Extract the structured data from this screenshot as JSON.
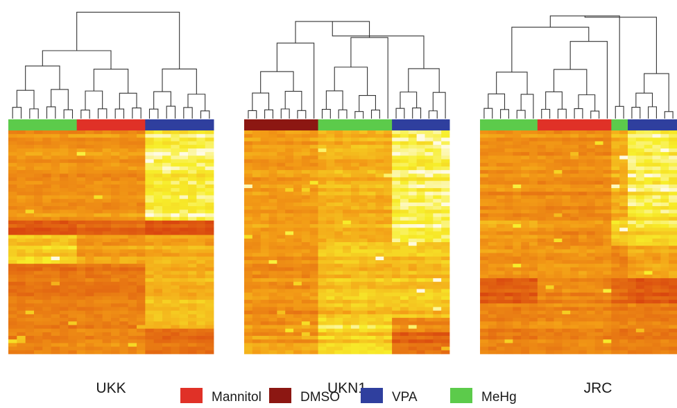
{
  "colors": {
    "Mannitol": "#e03127",
    "DMSO": "#8c1712",
    "VPA": "#2f3f9e",
    "MeHg": "#5ccb4b",
    "heat_low": "#d9470f",
    "heat_mid": "#f39c16",
    "heat_high": "#f7ee2a",
    "heat_max": "#fffbe4"
  },
  "legend": {
    "items": [
      {
        "label": "Mannitol",
        "color_key": "Mannitol"
      },
      {
        "label": "DMSO",
        "color_key": "DMSO"
      },
      {
        "label": "VPA",
        "color_key": "VPA"
      },
      {
        "label": "MeHg",
        "color_key": "MeHg"
      }
    ]
  },
  "chart_data": [
    {
      "type": "heatmap",
      "title": "UKK",
      "groups": [
        {
          "name": "MeHg",
          "n": 8
        },
        {
          "name": "Mannitol",
          "n": 8
        },
        {
          "name": "VPA",
          "n": 8
        }
      ],
      "clusters": [
        {
          "labels": [
            "MeHg",
            "Mannitol"
          ],
          "level": 0.96
        },
        {
          "labels": [
            "VPA"
          ],
          "level": 0.74
        }
      ]
    },
    {
      "type": "heatmap",
      "title": "UKN1",
      "groups": [
        {
          "name": "DMSO",
          "n": 9
        },
        {
          "name": "MeHg",
          "n": 9
        },
        {
          "name": "VPA",
          "n": 7
        }
      ],
      "clusters": [
        {
          "labels": [
            "DMSO",
            "MeHg"
          ],
          "level": 0.58
        },
        {
          "labels": [
            "VPA"
          ],
          "level": 0.33
        }
      ]
    },
    {
      "type": "heatmap",
      "title": "JRC",
      "groups": [
        {
          "name": "MeHg",
          "n": 7
        },
        {
          "name": "Mannitol",
          "n": 9
        },
        {
          "name": "MeHg",
          "n": 2
        },
        {
          "name": "VPA",
          "n": 6
        }
      ],
      "clusters": [
        {
          "labels": [
            "MeHg",
            "Mannitol",
            "MeHg"
          ],
          "level": 0.88
        },
        {
          "labels": [
            "VPA"
          ],
          "level": 0.45
        }
      ]
    }
  ]
}
